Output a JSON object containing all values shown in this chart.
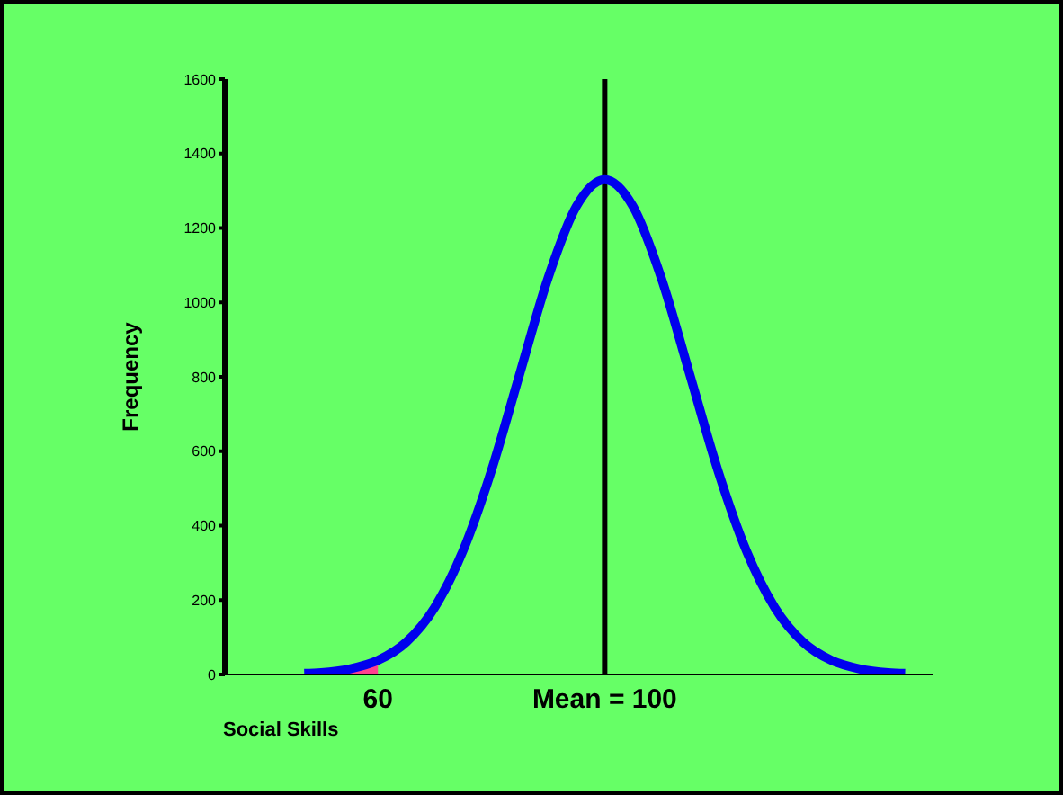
{
  "chart_data": {
    "type": "line",
    "xlabel": "Social Skills",
    "ylabel": "Frequency",
    "xlim": [
      33,
      158
    ],
    "xticks": [
      {
        "value": 60,
        "label": "60"
      },
      {
        "value": 100,
        "label": "Mean = 100"
      }
    ],
    "ylim": [
      0,
      1600
    ],
    "yticks": [
      0,
      200,
      400,
      600,
      800,
      1000,
      1200,
      1400,
      1600
    ],
    "grid": false,
    "legend": false,
    "marker": "none",
    "line_style": "solid",
    "ref_lines": [
      {
        "axis": "x",
        "value": 100,
        "color": "#000000"
      }
    ],
    "series": [
      {
        "type": "area",
        "color": "#ff3f8f",
        "x": [
          53,
          55,
          57,
          60
        ],
        "values": [
          10,
          15,
          22,
          38
        ]
      },
      {
        "type": "line",
        "color": "#0000ee",
        "x": [
          47,
          50,
          55,
          60,
          65,
          70,
          75,
          80,
          85,
          90,
          95,
          100,
          105,
          110,
          115,
          120,
          125,
          130,
          135,
          140,
          145,
          150,
          153
        ],
        "values": [
          3,
          5,
          15,
          38,
          87,
          180,
          332,
          547,
          807,
          1065,
          1258,
          1330,
          1258,
          1065,
          807,
          547,
          332,
          180,
          87,
          38,
          15,
          5,
          3
        ]
      }
    ]
  }
}
